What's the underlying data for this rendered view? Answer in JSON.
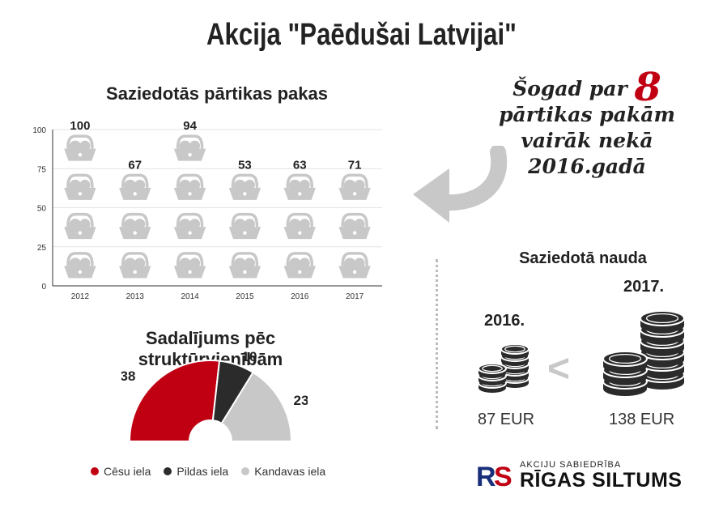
{
  "title": "Akcija \"Paēdušai Latvijai\"",
  "pictogram_title": "Saziedotās pārtikas pakas",
  "pie_title": "Sadalījums pēc struktūrvienībām",
  "callout": {
    "line1_prefix": "Šogad par",
    "number": "8",
    "line2": "pārtikas pakām",
    "line3": "vairāk nekā",
    "line4": "2016.gadā"
  },
  "money": {
    "title": "Saziedotā nauda",
    "left_year": "2016.",
    "left_amount": "87 EUR",
    "right_year": "2017.",
    "right_amount": "138 EUR",
    "comparison": "<"
  },
  "logo": {
    "small": "AKCIJU SABIEDRĪBA",
    "big": "RĪGAS SILTUMS",
    "mark": "RS"
  },
  "colors": {
    "red": "#c00012",
    "dark": "#2b2b2b",
    "gray": "#c8c8c8"
  },
  "icons": {
    "basket": "basket-icon",
    "arrow": "curved-arrow-icon",
    "coins": "coin-stack-icon"
  },
  "chart_data": [
    {
      "type": "bar",
      "categories": [
        "2012",
        "2013",
        "2014",
        "2015",
        "2016",
        "2017"
      ],
      "values": [
        100,
        67,
        94,
        53,
        63,
        71
      ],
      "ylim": [
        0,
        100
      ],
      "yticks": [
        0,
        25,
        50,
        75,
        100
      ],
      "grid": true,
      "title": "Saziedotās pārtikas pakas",
      "xlabel": "",
      "ylabel": ""
    },
    {
      "type": "pie",
      "title": "Sadalījums pēc struktūrvienībām",
      "labels": [
        "Cēsu iela",
        "Pildas iela",
        "Kandavas iela"
      ],
      "values": [
        38,
        10,
        23
      ],
      "colors": [
        "#c00012",
        "#2b2b2b",
        "#c8c8c8"
      ],
      "legend": "bottom"
    }
  ]
}
